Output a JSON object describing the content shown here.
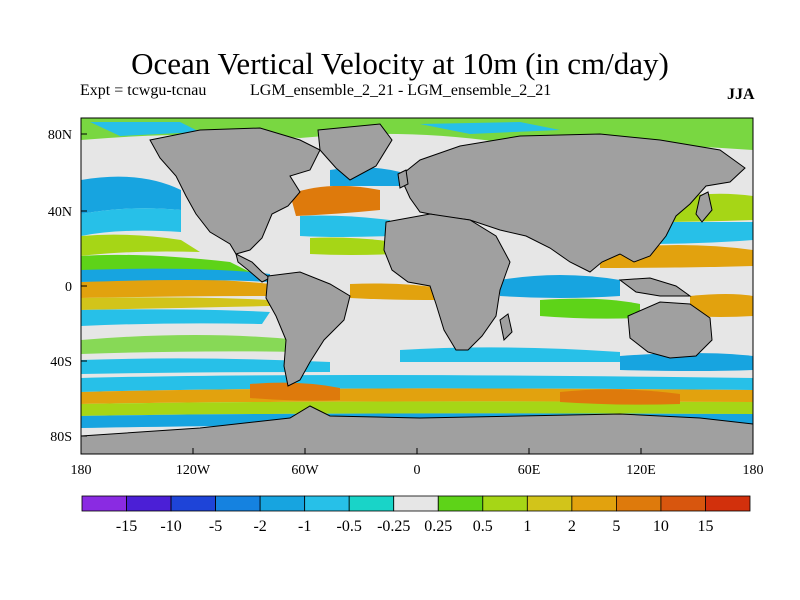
{
  "title": "Ocean Vertical Velocity at 10m (in cm/day)",
  "experiment_label": "Expt = tcwgu-tcnau",
  "ensemble_label": "LGM_ensemble_2_21 - LGM_ensemble_2_21",
  "season": "JJA",
  "map": {
    "lat_ticks": [
      "80N",
      "40N",
      "0",
      "40S",
      "80S"
    ],
    "lon_ticks": [
      "180",
      "120W",
      "60W",
      "0",
      "60E",
      "120E",
      "180"
    ],
    "land_color": "#a0a0a0",
    "neutral_color": "#e6e6e6"
  },
  "colorbar": {
    "labels": [
      "-15",
      "-10",
      "-5",
      "-2",
      "-1",
      "-0.5",
      "-0.25",
      "0.25",
      "0.5",
      "1",
      "2",
      "5",
      "10",
      "15"
    ],
    "colors": [
      "#8a2be2",
      "#4b1fd6",
      "#1e44d8",
      "#1582e0",
      "#17a4e0",
      "#27c0e8",
      "#19d4c8",
      "#e6e6e6",
      "#5ed318",
      "#a6d616",
      "#d2c41a",
      "#e2a20e",
      "#de7a0c",
      "#d8560e",
      "#d2300c"
    ]
  }
}
